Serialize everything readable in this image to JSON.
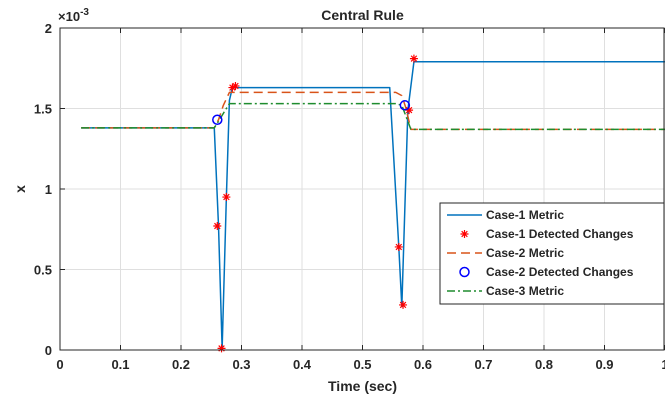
{
  "chart_data": {
    "type": "line",
    "title": "Central Rule",
    "xlabel": "Time (sec)",
    "ylabel": "x",
    "y_exponent_label": "×10",
    "y_exponent": "-3",
    "xlim": [
      0,
      1
    ],
    "ylim": [
      0,
      2
    ],
    "xticks": [
      0,
      0.1,
      0.2,
      0.3,
      0.4,
      0.5,
      0.6,
      0.7,
      0.8,
      0.9,
      1
    ],
    "xtick_labels": [
      "0",
      "0.1",
      "0.2",
      "0.3",
      "0.4",
      "0.5",
      "0.6",
      "0.7",
      "0.8",
      "0.9",
      "1"
    ],
    "yticks": [
      0,
      0.5,
      1,
      1.5,
      2
    ],
    "ytick_labels": [
      "0",
      "0.5",
      "1",
      "1.5",
      "2"
    ],
    "grid": true,
    "legend_position": "right",
    "series": [
      {
        "name": "Case-1 Metric",
        "style": "line",
        "color": "#0072BD",
        "x": [
          0.035,
          0.255,
          0.262,
          0.268,
          0.275,
          0.28,
          0.285,
          0.29,
          0.545,
          0.56,
          0.565,
          0.575,
          0.585,
          1.0
        ],
        "y": [
          1.38,
          1.38,
          0.77,
          0.01,
          0.95,
          1.55,
          1.63,
          1.63,
          1.63,
          0.64,
          0.27,
          1.49,
          1.79,
          1.79
        ]
      },
      {
        "name": "Case-1 Detected Changes",
        "style": "marker-star",
        "color": "#FF0000",
        "x": [
          0.26,
          0.267,
          0.275,
          0.285,
          0.29,
          0.56,
          0.567,
          0.577,
          0.585
        ],
        "y": [
          0.77,
          0.01,
          0.95,
          1.63,
          1.64,
          0.64,
          0.28,
          1.49,
          1.81
        ]
      },
      {
        "name": "Case-2 Metric",
        "style": "dashed",
        "color": "#D95319",
        "x": [
          0.035,
          0.255,
          0.262,
          0.27,
          0.28,
          0.29,
          0.555,
          0.565,
          0.572,
          0.58,
          1.0
        ],
        "y": [
          1.38,
          1.38,
          1.43,
          1.52,
          1.6,
          1.6,
          1.6,
          1.58,
          1.5,
          1.37,
          1.37
        ]
      },
      {
        "name": "Case-2 Detected Changes",
        "style": "marker-circle",
        "color": "#0000FF",
        "x": [
          0.26,
          0.57
        ],
        "y": [
          1.43,
          1.52
        ]
      },
      {
        "name": "Case-3 Metric",
        "style": "dashdot",
        "color": "#1E8C2E",
        "x": [
          0.035,
          0.255,
          0.262,
          0.27,
          0.28,
          0.29,
          0.555,
          0.565,
          0.572,
          0.58,
          1.0
        ],
        "y": [
          1.38,
          1.38,
          1.42,
          1.47,
          1.53,
          1.53,
          1.53,
          1.52,
          1.45,
          1.37,
          1.37
        ]
      }
    ]
  }
}
